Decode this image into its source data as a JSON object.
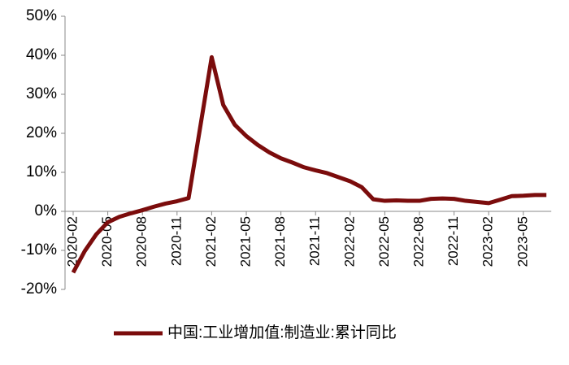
{
  "chart_data": {
    "type": "line",
    "x": [
      "2020-02",
      "2020-03",
      "2020-04",
      "2020-05",
      "2020-06",
      "2020-07",
      "2020-08",
      "2020-09",
      "2020-10",
      "2020-11",
      "2020-12",
      "2021-02",
      "2021-03",
      "2021-04",
      "2021-05",
      "2021-06",
      "2021-07",
      "2021-08",
      "2021-09",
      "2021-10",
      "2021-11",
      "2021-12",
      "2022-02",
      "2022-03",
      "2022-04",
      "2022-05",
      "2022-06",
      "2022-07",
      "2022-08",
      "2022-09",
      "2022-10",
      "2022-11",
      "2022-12",
      "2023-02",
      "2023-03",
      "2023-04",
      "2023-05",
      "2023-06",
      "2023-07"
    ],
    "series": [
      {
        "name": "中国:工业增加值:制造业:累计同比",
        "color": "#7b0c0c",
        "values": [
          -15.7,
          -10.2,
          -5.9,
          -2.8,
          -1.4,
          -0.5,
          0.3,
          1.2,
          2.0,
          2.6,
          3.4,
          39.5,
          27.3,
          22.2,
          19.3,
          17.0,
          15.1,
          13.6,
          12.5,
          11.3,
          10.5,
          9.8,
          7.7,
          6.2,
          3.1,
          2.7,
          2.8,
          2.7,
          2.7,
          3.2,
          3.3,
          3.2,
          2.7,
          2.1,
          3.0,
          3.9,
          4.0,
          4.2,
          4.2
        ]
      }
    ],
    "xticks": [
      "2020-02",
      "2020-05",
      "2020-08",
      "2020-11",
      "2021-02",
      "2021-05",
      "2021-08",
      "2021-11",
      "2022-02",
      "2022-05",
      "2022-08",
      "2022-11",
      "2023-02",
      "2023-05"
    ],
    "ylim": [
      -20,
      50
    ],
    "yticks": [
      {
        "value": -20,
        "label": "-20%"
      },
      {
        "value": -10,
        "label": "-10%"
      },
      {
        "value": 0,
        "label": "0%"
      },
      {
        "value": 10,
        "label": "10%"
      },
      {
        "value": 20,
        "label": "20%"
      },
      {
        "value": 30,
        "label": "30%"
      },
      {
        "value": 40,
        "label": "40%"
      },
      {
        "value": 50,
        "label": "50%"
      }
    ],
    "legend": "bottom",
    "grid": false
  }
}
